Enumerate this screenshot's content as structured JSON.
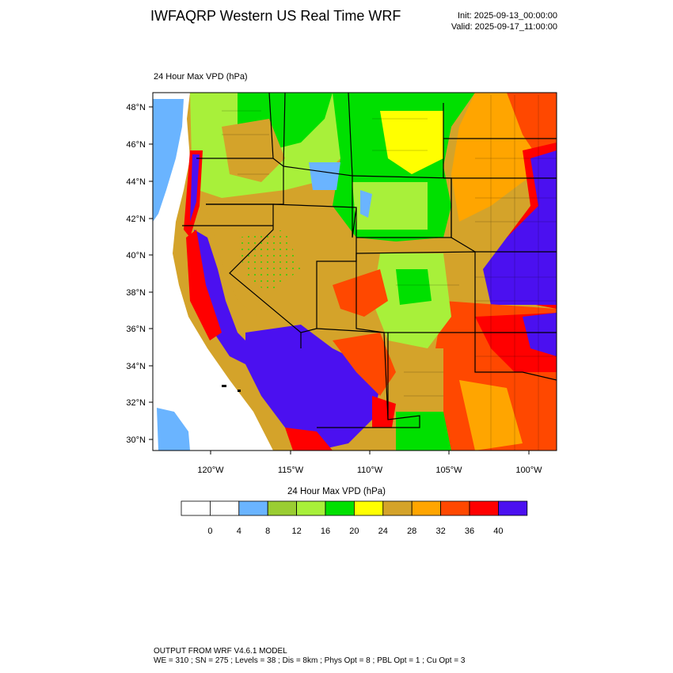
{
  "header": {
    "title": "IWFAQRP Western US Real Time WRF",
    "init": "Init: 2025-09-13_00:00:00",
    "valid": "Valid: 2025-09-17_11:00:00"
  },
  "field_label": "24 Hour Max VPD   (hPa)",
  "map": {
    "lat_labels": [
      "48°N",
      "46°N",
      "44°N",
      "42°N",
      "40°N",
      "38°N",
      "36°N",
      "34°N",
      "32°N",
      "30°N"
    ],
    "lon_labels": [
      "120°W",
      "115°W",
      "110°W",
      "105°W",
      "100°W"
    ]
  },
  "colorbar": {
    "title": "24 Hour Max VPD  (hPa)",
    "colors": [
      "#ffffff",
      "#ffffff",
      "#6ab4ff",
      "#9acd32",
      "#a8f03a",
      "#00e000",
      "#ffff00",
      "#d4a32a",
      "#ffa500",
      "#ff4800",
      "#ff0000",
      "#4b10f0"
    ],
    "labels": [
      "0",
      "4",
      "8",
      "12",
      "16",
      "20",
      "24",
      "28",
      "32",
      "36",
      "40"
    ]
  },
  "footer": {
    "line1": "OUTPUT FROM WRF V4.6.1 MODEL",
    "line2": "WE = 310 ; SN = 275 ; Levels = 38 ; Dis = 8km ; Phys Opt = 8 ; PBL Opt = 1 ; Cu Opt = 3"
  }
}
